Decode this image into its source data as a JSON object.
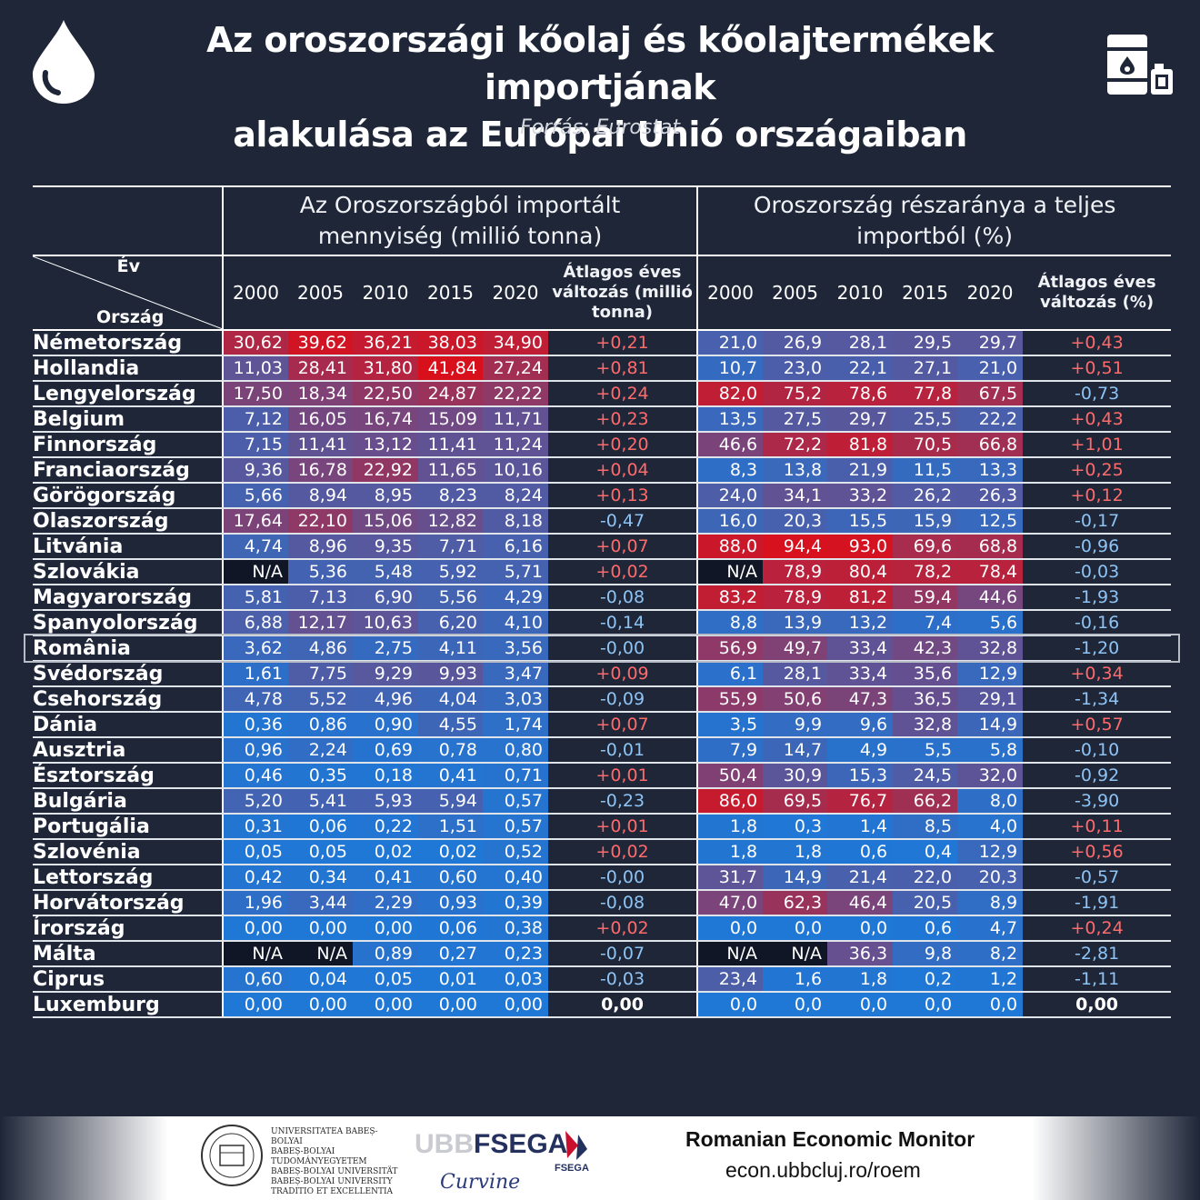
{
  "header": {
    "title_line1": "Az oroszországi kőolaj és kőolajtermékek importjának",
    "title_line2": "alakulása az Európai Unió országaiban",
    "source": "Forrás:  Eurostat",
    "left_icon": "oil-drop-icon",
    "right_icon": "oil-barrel-icon"
  },
  "table": {
    "corner_year": "Év",
    "corner_country": "Ország",
    "group1_title_line1": "Az Oroszországból importált",
    "group1_title_line2": "mennyiség (millió tonna)",
    "group2_title_line1": "Oroszország részaránya a teljes",
    "group2_title_line2": "importból (%)",
    "years": [
      "2000",
      "2005",
      "2010",
      "2015",
      "2020"
    ],
    "avg1_label_line1": "Átlagos éves",
    "avg1_label_line2": "változás (millió",
    "avg1_label_line3": "tonna)",
    "avg2_label_line1": "Átlagos éves",
    "avg2_label_line2": "változás (%)",
    "highlighted_country": "România",
    "rows": [
      {
        "country": "Németország",
        "qty": [
          "30,62",
          "39,62",
          "36,21",
          "38,03",
          "34,90"
        ],
        "qty_change": "+0,21",
        "share": [
          "21,0",
          "26,9",
          "28,1",
          "29,5",
          "29,7"
        ],
        "share_change": "+0,43"
      },
      {
        "country": "Hollandia",
        "qty": [
          "11,03",
          "28,41",
          "31,80",
          "41,84",
          "27,24"
        ],
        "qty_change": "+0,81",
        "share": [
          "10,7",
          "23,0",
          "22,1",
          "27,1",
          "21,0"
        ],
        "share_change": "+0,51"
      },
      {
        "country": "Lengyelország",
        "qty": [
          "17,50",
          "18,34",
          "22,50",
          "24,87",
          "22,22"
        ],
        "qty_change": "+0,24",
        "share": [
          "82,0",
          "75,2",
          "78,6",
          "77,8",
          "67,5"
        ],
        "share_change": "-0,73"
      },
      {
        "country": "Belgium",
        "qty": [
          "7,12",
          "16,05",
          "16,74",
          "15,09",
          "11,71"
        ],
        "qty_change": "+0,23",
        "share": [
          "13,5",
          "27,5",
          "29,7",
          "25,5",
          "22,2"
        ],
        "share_change": "+0,43"
      },
      {
        "country": "Finnország",
        "qty": [
          "7,15",
          "11,41",
          "13,12",
          "11,41",
          "11,24"
        ],
        "qty_change": "+0,20",
        "share": [
          "46,6",
          "72,2",
          "81,8",
          "70,5",
          "66,8"
        ],
        "share_change": "+1,01"
      },
      {
        "country": "Franciaország",
        "qty": [
          "9,36",
          "16,78",
          "22,92",
          "11,65",
          "10,16"
        ],
        "qty_change": "+0,04",
        "share": [
          "8,3",
          "13,8",
          "21,9",
          "11,5",
          "13,3"
        ],
        "share_change": "+0,25"
      },
      {
        "country": "Görögország",
        "qty": [
          "5,66",
          "8,94",
          "8,95",
          "8,23",
          "8,24"
        ],
        "qty_change": "+0,13",
        "share": [
          "24,0",
          "34,1",
          "33,2",
          "26,2",
          "26,3"
        ],
        "share_change": "+0,12"
      },
      {
        "country": "Olaszország",
        "qty": [
          "17,64",
          "22,10",
          "15,06",
          "12,82",
          "8,18"
        ],
        "qty_change": "-0,47",
        "share": [
          "16,0",
          "20,3",
          "15,5",
          "15,9",
          "12,5"
        ],
        "share_change": "-0,17"
      },
      {
        "country": "Litvánia",
        "qty": [
          "4,74",
          "8,96",
          "9,35",
          "7,71",
          "6,16"
        ],
        "qty_change": "+0,07",
        "share": [
          "88,0",
          "94,4",
          "93,0",
          "69,6",
          "68,8"
        ],
        "share_change": "-0,96"
      },
      {
        "country": "Szlovákia",
        "qty": [
          "N/A",
          "5,36",
          "5,48",
          "5,92",
          "5,71"
        ],
        "qty_change": "+0,02",
        "share": [
          "N/A",
          "78,9",
          "80,4",
          "78,2",
          "78,4"
        ],
        "share_change": "-0,03"
      },
      {
        "country": "Magyarország",
        "qty": [
          "5,81",
          "7,13",
          "6,90",
          "5,56",
          "4,29"
        ],
        "qty_change": "-0,08",
        "share": [
          "83,2",
          "78,9",
          "81,2",
          "59,4",
          "44,6"
        ],
        "share_change": "-1,93"
      },
      {
        "country": "Spanyolország",
        "qty": [
          "6,88",
          "12,17",
          "10,63",
          "6,20",
          "4,10"
        ],
        "qty_change": "-0,14",
        "share": [
          "8,8",
          "13,9",
          "13,2",
          "7,4",
          "5,6"
        ],
        "share_change": "-0,16"
      },
      {
        "country": "România",
        "qty": [
          "3,62",
          "4,86",
          "2,75",
          "4,11",
          "3,56"
        ],
        "qty_change": "-0,00",
        "share": [
          "56,9",
          "49,7",
          "33,4",
          "42,3",
          "32,8"
        ],
        "share_change": "-1,20"
      },
      {
        "country": "Svédország",
        "qty": [
          "1,61",
          "7,75",
          "9,29",
          "9,93",
          "3,47"
        ],
        "qty_change": "+0,09",
        "share": [
          "6,1",
          "28,1",
          "33,4",
          "35,6",
          "12,9"
        ],
        "share_change": "+0,34"
      },
      {
        "country": "Csehország",
        "qty": [
          "4,78",
          "5,52",
          "4,96",
          "4,04",
          "3,03"
        ],
        "qty_change": "-0,09",
        "share": [
          "55,9",
          "50,6",
          "47,3",
          "36,5",
          "29,1"
        ],
        "share_change": "-1,34"
      },
      {
        "country": "Dánia",
        "qty": [
          "0,36",
          "0,86",
          "0,90",
          "4,55",
          "1,74"
        ],
        "qty_change": "+0,07",
        "share": [
          "3,5",
          "9,9",
          "9,6",
          "32,8",
          "14,9"
        ],
        "share_change": "+0,57"
      },
      {
        "country": "Ausztria",
        "qty": [
          "0,96",
          "2,24",
          "0,69",
          "0,78",
          "0,80"
        ],
        "qty_change": "-0,01",
        "share": [
          "7,9",
          "14,7",
          "4,9",
          "5,5",
          "5,8"
        ],
        "share_change": "-0,10"
      },
      {
        "country": "Észtország",
        "qty": [
          "0,46",
          "0,35",
          "0,18",
          "0,41",
          "0,71"
        ],
        "qty_change": "+0,01",
        "share": [
          "50,4",
          "30,9",
          "15,3",
          "24,5",
          "32,0"
        ],
        "share_change": "-0,92"
      },
      {
        "country": "Bulgária",
        "qty": [
          "5,20",
          "5,41",
          "5,93",
          "5,94",
          "0,57"
        ],
        "qty_change": "-0,23",
        "share": [
          "86,0",
          "69,5",
          "76,7",
          "66,2",
          "8,0"
        ],
        "share_change": "-3,90"
      },
      {
        "country": "Portugália",
        "qty": [
          "0,31",
          "0,06",
          "0,22",
          "1,51",
          "0,57"
        ],
        "qty_change": "+0,01",
        "share": [
          "1,8",
          "0,3",
          "1,4",
          "8,5",
          "4,0"
        ],
        "share_change": "+0,11"
      },
      {
        "country": "Szlovénia",
        "qty": [
          "0,05",
          "0,05",
          "0,02",
          "0,02",
          "0,52"
        ],
        "qty_change": "+0,02",
        "share": [
          "1,8",
          "1,8",
          "0,6",
          "0,4",
          "12,9"
        ],
        "share_change": "+0,56"
      },
      {
        "country": "Lettország",
        "qty": [
          "0,42",
          "0,34",
          "0,41",
          "0,60",
          "0,40"
        ],
        "qty_change": "-0,00",
        "share": [
          "31,7",
          "14,9",
          "21,4",
          "22,0",
          "20,3"
        ],
        "share_change": "-0,57"
      },
      {
        "country": "Horvátország",
        "qty": [
          "1,96",
          "3,44",
          "2,29",
          "0,93",
          "0,39"
        ],
        "qty_change": "-0,08",
        "share": [
          "47,0",
          "62,3",
          "46,4",
          "20,5",
          "8,9"
        ],
        "share_change": "-1,91"
      },
      {
        "country": "Írország",
        "qty": [
          "0,00",
          "0,00",
          "0,00",
          "0,06",
          "0,38"
        ],
        "qty_change": "+0,02",
        "share": [
          "0,0",
          "0,0",
          "0,0",
          "0,6",
          "4,7"
        ],
        "share_change": "+0,24"
      },
      {
        "country": "Málta",
        "qty": [
          "N/A",
          "N/A",
          "0,89",
          "0,27",
          "0,23"
        ],
        "qty_change": "-0,07",
        "share": [
          "N/A",
          "N/A",
          "36,3",
          "9,8",
          "8,2"
        ],
        "share_change": "-2,81"
      },
      {
        "country": "Ciprus",
        "qty": [
          "0,60",
          "0,04",
          "0,05",
          "0,01",
          "0,03"
        ],
        "qty_change": "-0,03",
        "share": [
          "23,4",
          "1,6",
          "1,8",
          "0,2",
          "1,2"
        ],
        "share_change": "-1,11"
      },
      {
        "country": "Luxemburg",
        "qty": [
          "0,00",
          "0,00",
          "0,00",
          "0,00",
          "0,00"
        ],
        "qty_change": "0,00",
        "share": [
          "0,0",
          "0,0",
          "0,0",
          "0,0",
          "0,0"
        ],
        "share_change": "0,00"
      }
    ]
  },
  "colors": {
    "background": "#1e2638",
    "cell_low": "#1f77d6",
    "cell_high": "#d8101c",
    "positive_text": "#ff6b6b",
    "negative_text": "#8ec4f5",
    "na_cell": "#101626"
  },
  "footer": {
    "uni_text": [
      "UNIVERSITATEA BABEȘ-BOLYAI",
      "BABEȘ-BOLYAI TUDOMÁNYEGYETEM",
      "BABEȘ-BOLYAI UNIVERSITÄT",
      "BABEȘ-BOLYAI UNIVERSITY",
      "TRADITIO ET EXCELLENTIA"
    ],
    "ubb": "UBB",
    "fsega": "FSEGA",
    "fsega_small": "FSEGA",
    "signature": "Curvine",
    "roem_title": "Romanian Economic Monitor",
    "roem_url": "econ.ubbcluj.ro/roem"
  }
}
